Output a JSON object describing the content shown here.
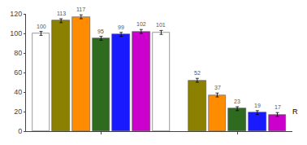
{
  "chart_data": {
    "type": "bar",
    "series": [
      {
        "values": [
          100,
          113,
          117,
          95,
          99,
          102,
          101
        ],
        "colors": [
          "#ffffff",
          "#8b8000",
          "#ff8c00",
          "#2e6b1e",
          "#1a1aff",
          "#cc00cc",
          "#ffffff"
        ],
        "error": [
          2,
          2,
          2,
          2,
          2,
          2,
          2
        ]
      },
      {
        "values": [
          52,
          37,
          23,
          19,
          17
        ],
        "colors": [
          "#8b8000",
          "#ff8c00",
          "#2e6b1e",
          "#1a1aff",
          "#cc00cc"
        ],
        "error": [
          2,
          2,
          2,
          2,
          2
        ]
      }
    ],
    "ylim": [
      0,
      120
    ],
    "yticks": [
      0,
      20,
      40,
      60,
      80,
      100,
      120
    ],
    "grid": false,
    "data_labels": true,
    "tick_labels": "y",
    "annotations": [
      {
        "text": "R",
        "y": 20
      }
    ]
  }
}
